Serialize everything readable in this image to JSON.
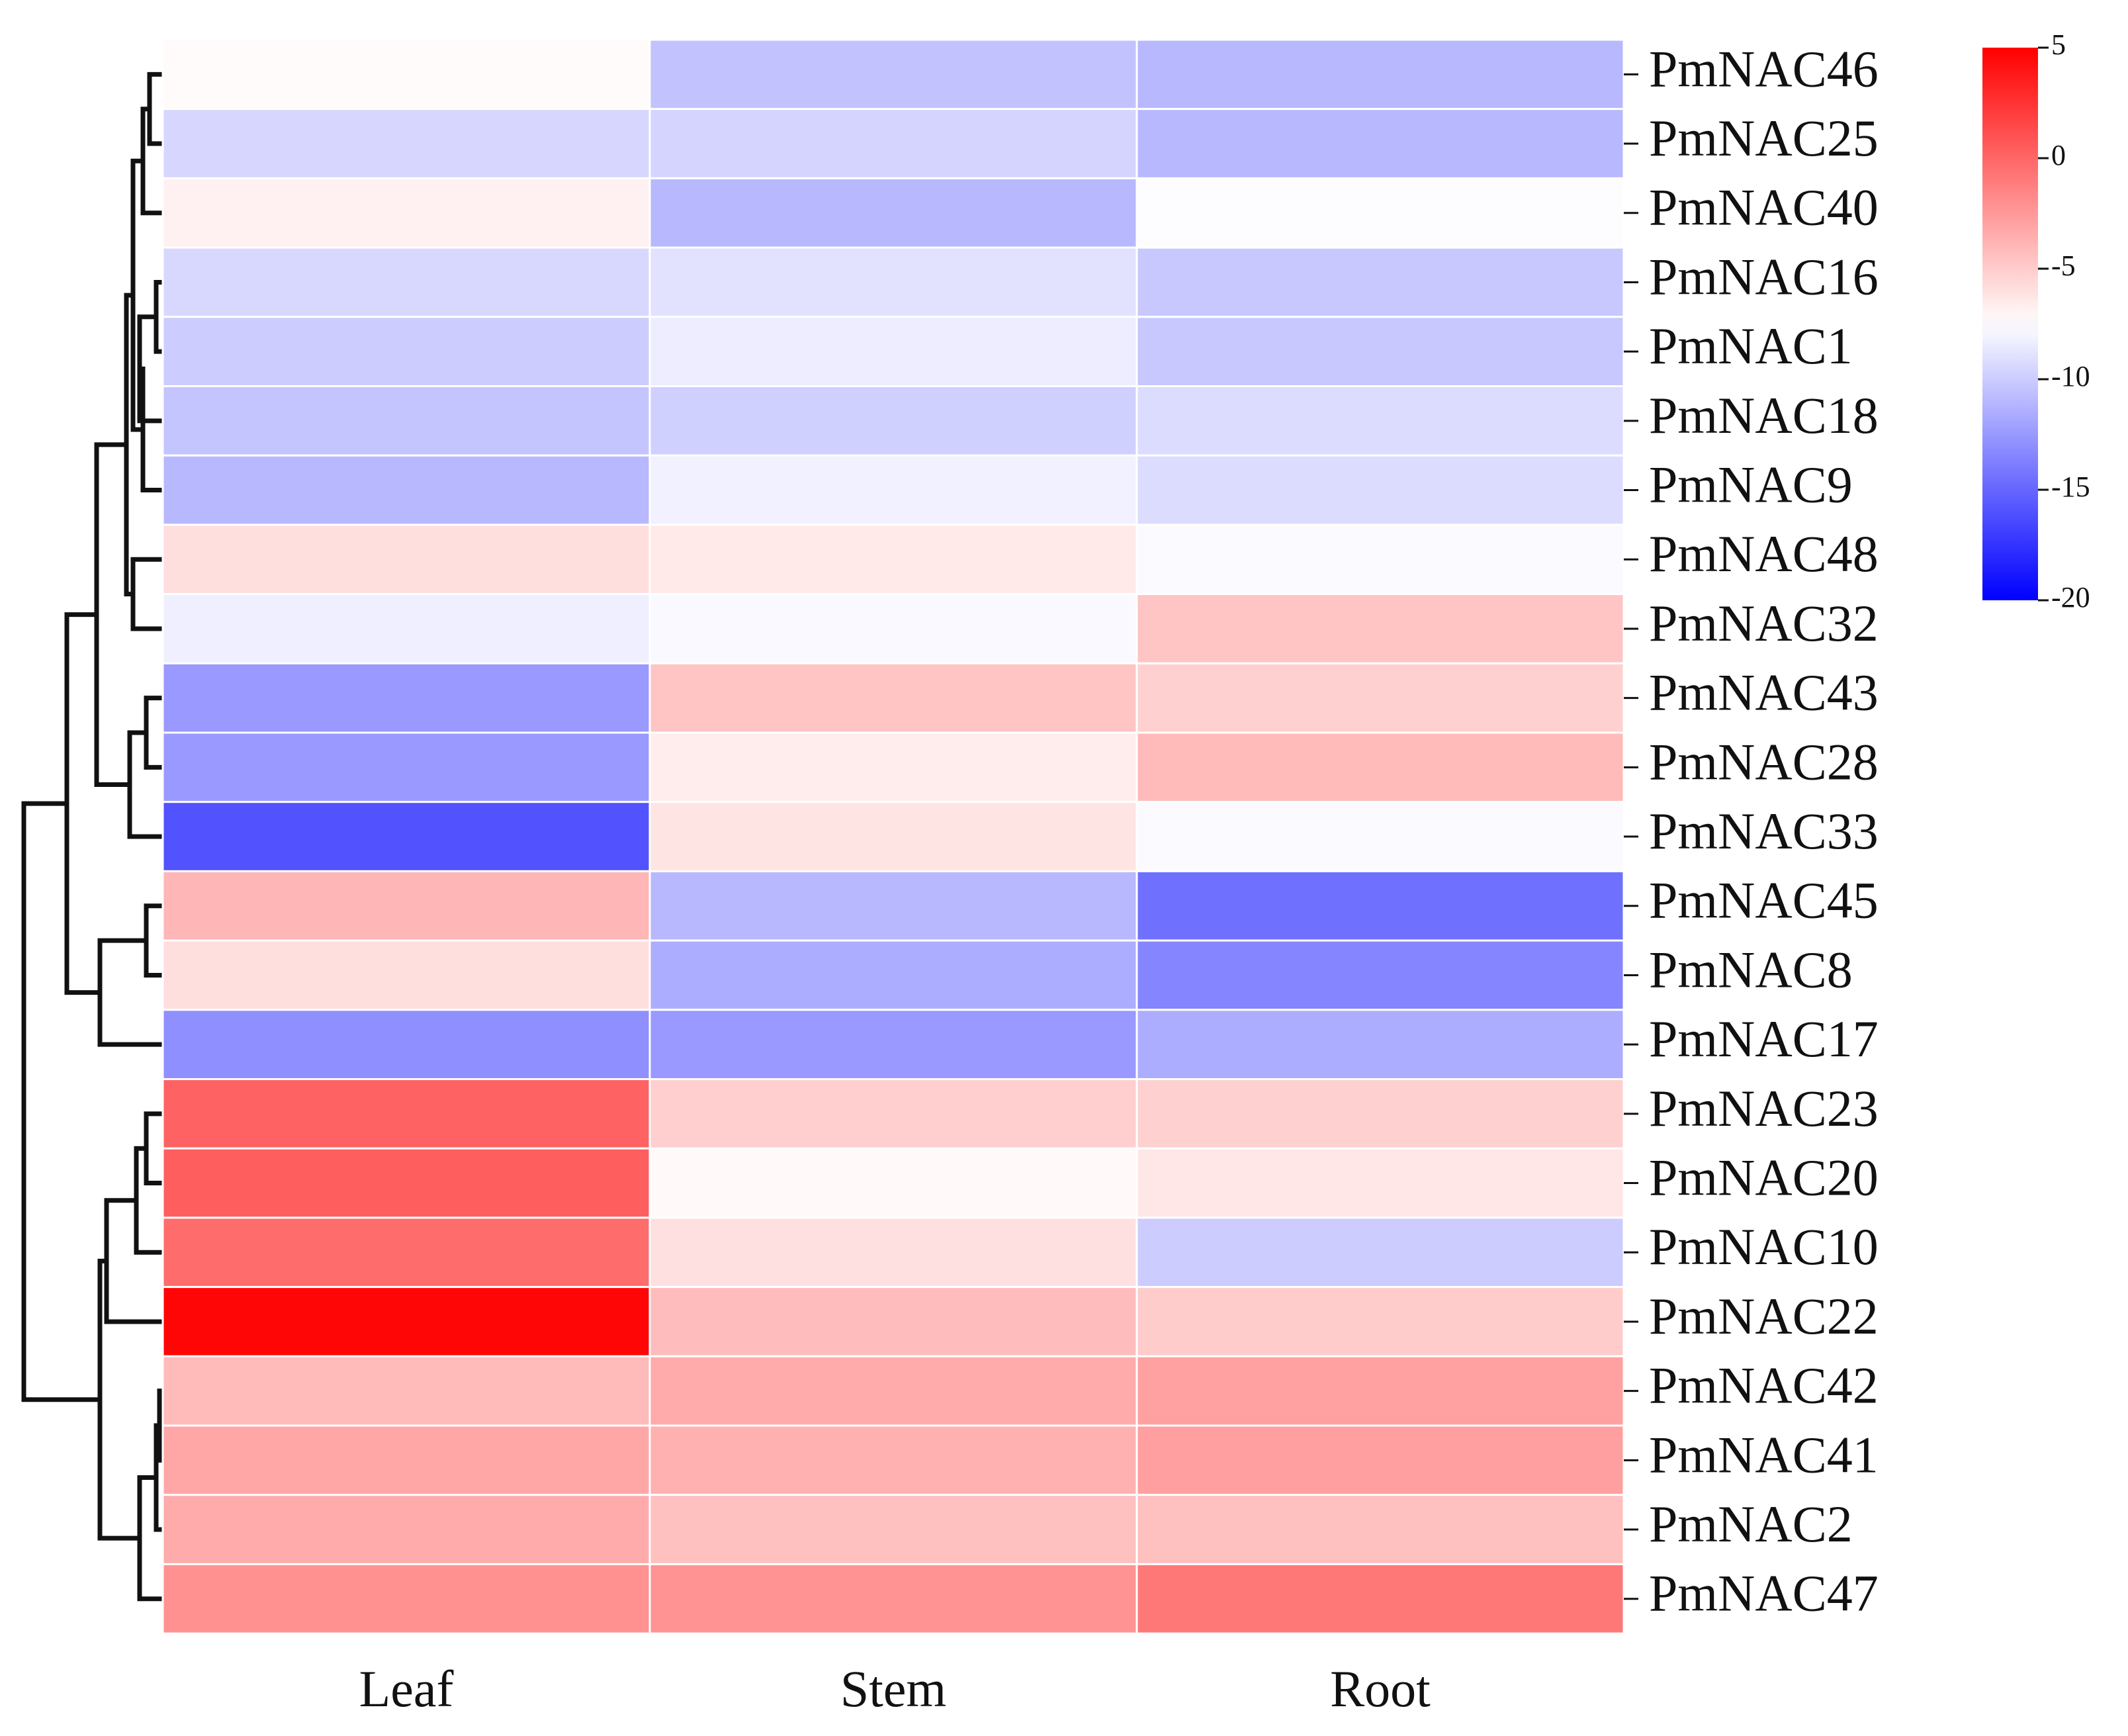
{
  "chart_data": {
    "type": "heatmap",
    "title": "",
    "xlabel": "",
    "ylabel": "",
    "columns": [
      "Leaf",
      "Stem",
      "Root"
    ],
    "rows": [
      "PmNAC46",
      "PmNAC25",
      "PmNAC40",
      "PmNAC16",
      "PmNAC1",
      "PmNAC18",
      "PmNAC9",
      "PmNAC48",
      "PmNAC32",
      "PmNAC43",
      "PmNAC28",
      "PmNAC33",
      "PmNAC45",
      "PmNAC8",
      "PmNAC17",
      "PmNAC23",
      "PmNAC20",
      "PmNAC10",
      "PmNAC22",
      "PmNAC42",
      "PmNAC41",
      "PmNAC2",
      "PmNAC47"
    ],
    "values": [
      [
        -7.3,
        -10.5,
        -11.0
      ],
      [
        -9.5,
        -9.6,
        -11.0
      ],
      [
        -6.8,
        -11.0,
        -7.6
      ],
      [
        -9.4,
        -8.9,
        -10.2
      ],
      [
        -10.0,
        -8.4,
        -10.2
      ],
      [
        -10.4,
        -9.8,
        -9.2
      ],
      [
        -11.0,
        -8.2,
        -9.2
      ],
      [
        -5.9,
        -6.4,
        -7.7
      ],
      [
        -8.3,
        -7.8,
        -4.6
      ],
      [
        -12.5,
        -4.6,
        -5.2
      ],
      [
        -12.5,
        -6.6,
        -4.1
      ],
      [
        -16.0,
        -6.2,
        -7.7
      ],
      [
        -3.9,
        -11.0,
        -14.5
      ],
      [
        -5.9,
        -11.5,
        -13.5
      ],
      [
        -13.0,
        -12.5,
        -11.5
      ],
      [
        0.2,
        -5.1,
        -5.2
      ],
      [
        0.4,
        -7.2,
        -6.3
      ],
      [
        -0.3,
        -6.0,
        -10.0
      ],
      [
        4.7,
        -4.2,
        -5.0
      ],
      [
        -4.1,
        -3.4,
        -2.9
      ],
      [
        -3.2,
        -3.7,
        -2.8
      ],
      [
        -3.4,
        -4.4,
        -4.4
      ],
      [
        -2.1,
        -2.2,
        -0.9
      ]
    ],
    "colorbar": {
      "colormap": "bwr",
      "min": -20,
      "max": 5,
      "center": -7.5,
      "ticks": [
        5,
        0,
        -5,
        -10,
        -15,
        -20
      ],
      "tick_labels": [
        "5",
        "0",
        "-5",
        "-10",
        "-15",
        "-20"
      ]
    },
    "colors": {
      "low": "#0000ff",
      "mid": "#ffffff",
      "high": "#ff0000"
    },
    "row_dendrogram": {
      "position": "left",
      "merges": [
        {
          "a": "PmNAC16",
          "b": "PmNAC1",
          "h": 0.02
        },
        {
          "a": "PmNAC46",
          "b": "PmNAC25",
          "h": 0.04
        },
        {
          "a": "c1",
          "b": "PmNAC18",
          "h": 0.07
        },
        {
          "a": "c2",
          "b": "PmNAC40",
          "h": 0.06
        },
        {
          "a": "c3",
          "b": "PmNAC9",
          "h": 0.06
        },
        {
          "a": "c4",
          "b": "c5",
          "h": 0.09
        },
        {
          "a": "PmNAC48",
          "b": "PmNAC32",
          "h": 0.09
        },
        {
          "a": "c6",
          "b": "c7",
          "h": 0.11
        },
        {
          "a": "PmNAC43",
          "b": "PmNAC28",
          "h": 0.05
        },
        {
          "a": "c9",
          "b": "PmNAC33",
          "h": 0.1
        },
        {
          "a": "c8",
          "b": "c10",
          "h": 0.2
        },
        {
          "a": "PmNAC45",
          "b": "PmNAC8",
          "h": 0.05
        },
        {
          "a": "c12",
          "b": "PmNAC17",
          "h": 0.19
        },
        {
          "a": "c11",
          "b": "c13",
          "h": 0.29
        },
        {
          "a": "PmNAC42",
          "b": "PmNAC41",
          "h": 0.01
        },
        {
          "a": "c15",
          "b": "PmNAC2",
          "h": 0.02
        },
        {
          "a": "c16",
          "b": "PmNAC47",
          "h": 0.07
        },
        {
          "a": "PmNAC23",
          "b": "PmNAC20",
          "h": 0.05
        },
        {
          "a": "c18",
          "b": "PmNAC10",
          "h": 0.08
        },
        {
          "a": "c19",
          "b": "PmNAC22",
          "h": 0.17
        },
        {
          "a": "c17",
          "b": "c20",
          "h": 0.19
        },
        {
          "a": "c14",
          "b": "c21",
          "h": 0.42
        }
      ]
    }
  }
}
